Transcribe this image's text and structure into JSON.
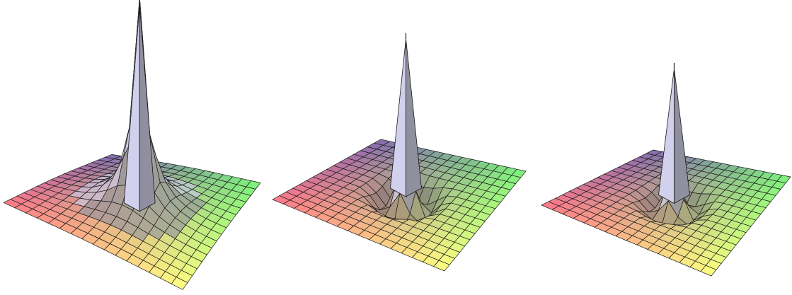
{
  "figure": {
    "panels": [
      {
        "id": "panel-1",
        "surface": "peak-with-skirt",
        "peak_height": 0.97,
        "dip_depth": 0.0
      },
      {
        "id": "panel-2",
        "surface": "peak-with-ring-dip",
        "peak_height": 0.83,
        "dip_depth": 0.11
      },
      {
        "id": "panel-3",
        "surface": "peak-with-ring-dip",
        "peak_height": 0.72,
        "dip_depth": 0.09
      }
    ],
    "grid_lines": 16,
    "colors": {
      "background": "#ffffff",
      "mesh_line": "#1a1a1a",
      "corner_left": "#ff5a6e",
      "corner_back": "#6a4aa0",
      "corner_right": "#5cf25c",
      "corner_front": "#ffff66",
      "peak_light": "#c9c9ea",
      "peak_dark": "#8f8f9f"
    }
  }
}
